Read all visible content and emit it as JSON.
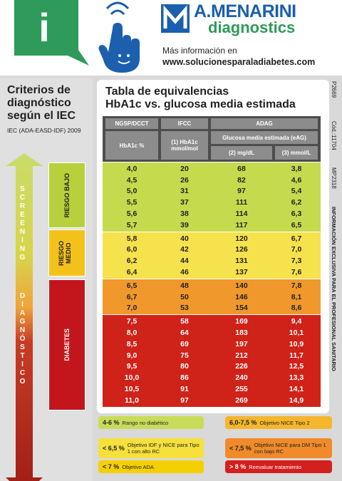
{
  "header": {
    "info_icon": "i",
    "brand": "A.MENARINI",
    "brand_sub": "diagnostics",
    "more_info": "Más información en",
    "url": "www.solucionesparaladiabetes.com"
  },
  "criteria": {
    "title": [
      "Criterios de",
      "diagnóstico",
      "según el IEC"
    ],
    "source": "IEC (ADA-EASD-IDF) 2009",
    "arrows": [
      {
        "label": "SCREENING"
      },
      {
        "label": "DIAGNÓSTICO"
      }
    ],
    "zones": [
      {
        "label": "RIESGO BAJO",
        "color": "#b8d03c"
      },
      {
        "label": "RIESGO MEDIO",
        "color": "#f3c21a"
      },
      {
        "label": "DIABETES",
        "color": "#c3161c"
      }
    ]
  },
  "table": {
    "title": "Tabla de equivalencias",
    "subtitle": "HbA1c vs. glucosa media estimada",
    "head": {
      "ngsp": "NGSP/DCCT",
      "ifcc": "IFCC",
      "adag": "ADAG",
      "hba1c": "HbA1c %",
      "mmolmol": "(1) HbA1c mmol/mol",
      "eag": "Glucosa media estimada (eAG)",
      "mgdl": "(2) mg/dL",
      "mmoll": "(3) mmol/L"
    },
    "groups": [
      {
        "color": "#c6da4e",
        "text_color": "#222222",
        "rows": [
          [
            "4,0",
            "20",
            "68",
            "3,8"
          ],
          [
            "4,5",
            "26",
            "82",
            "4,6"
          ],
          [
            "5,0",
            "31",
            "97",
            "5,4"
          ],
          [
            "5,5",
            "37",
            "111",
            "6,2"
          ],
          [
            "5,6",
            "38",
            "114",
            "6,3"
          ],
          [
            "5,7",
            "39",
            "117",
            "6,5"
          ]
        ]
      },
      {
        "color": "#f6e24c",
        "text_color": "#222222",
        "rows": [
          [
            "5,8",
            "40",
            "120",
            "6,7"
          ],
          [
            "6,0",
            "42",
            "126",
            "7,0"
          ],
          [
            "6,2",
            "44",
            "131",
            "7,3"
          ],
          [
            "6,4",
            "46",
            "137",
            "7,6"
          ]
        ]
      },
      {
        "color": "#f0982c",
        "text_color": "#222222",
        "rows": [
          [
            "6,5",
            "48",
            "140",
            "7,8"
          ],
          [
            "6,7",
            "50",
            "146",
            "8,1"
          ],
          [
            "7,0",
            "53",
            "154",
            "8,6"
          ]
        ]
      },
      {
        "color": "#cf2219",
        "text_color": "#ffffff",
        "rows": [
          [
            "7,5",
            "58",
            "169",
            "9,4"
          ],
          [
            "8,0",
            "64",
            "183",
            "10,1"
          ],
          [
            "8,5",
            "69",
            "197",
            "10,9"
          ],
          [
            "9,0",
            "75",
            "212",
            "11,7"
          ],
          [
            "9,5",
            "80",
            "226",
            "12,5"
          ],
          [
            "10,0",
            "86",
            "240",
            "13,3"
          ],
          [
            "10,5",
            "91",
            "255",
            "14,1"
          ],
          [
            "11,0",
            "97",
            "269",
            "14,9"
          ]
        ]
      }
    ]
  },
  "legend": [
    {
      "range": "4-6 %",
      "text": "Rango no diabético",
      "color": "#c8dc5a"
    },
    {
      "range": "6,0-7,5 %",
      "text": "Objetivo NICE Tipo 2",
      "color": "#f5b62c"
    },
    {
      "range": "< 6,5 %",
      "text": "Objetivo IDF y NICE para Tipo 1 con alto RC",
      "color": "#f6e03c"
    },
    {
      "range": "< 7,5 %",
      "text": "Objetivo NICE para DM Tipo 1 con bajo RC",
      "color": "#f08a2a"
    },
    {
      "range": "< 7 %",
      "text": "Objetivo ADA",
      "color": "#f5d000"
    },
    {
      "range": "> 8 %",
      "text": "Reevaluar tratamiento",
      "color": "#d4201c"
    }
  ],
  "side": {
    "codes": [
      "P2669",
      "Cód.:11704",
      "MP2318"
    ],
    "notice": "INFORMACIÓN EXCLUSIVA PARA EL PROFESIONAL SANITARIO"
  }
}
